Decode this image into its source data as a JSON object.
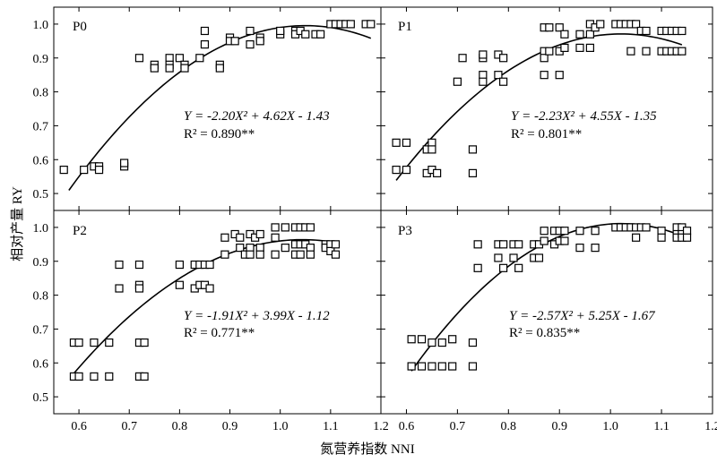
{
  "chart_data": {
    "type": "scatter",
    "ylabel": "相对产量 RY",
    "xlabel": "氮营养指数 NNI",
    "xlim": [
      0.55,
      1.2
    ],
    "ylim": [
      0.45,
      1.05
    ],
    "xticks": [
      "0.6",
      "0.7",
      "0.8",
      "0.9",
      "1.0",
      "1.1",
      "1.2"
    ],
    "yticks": [
      "0.5",
      "0.6",
      "0.7",
      "0.8",
      "0.9",
      "1.0"
    ],
    "panels": [
      {
        "label": "P0",
        "equation": "Y = -2.20X² + 4.62X - 1.43",
        "r2": "R² = 0.890**",
        "coef": [
          -2.2,
          4.62,
          -1.43
        ],
        "fit_range": [
          0.58,
          1.18
        ],
        "points": [
          [
            0.57,
            0.57
          ],
          [
            0.61,
            0.57
          ],
          [
            0.63,
            0.58
          ],
          [
            0.64,
            0.58
          ],
          [
            0.64,
            0.57
          ],
          [
            0.69,
            0.58
          ],
          [
            0.69,
            0.59
          ],
          [
            0.72,
            0.9
          ],
          [
            0.75,
            0.88
          ],
          [
            0.75,
            0.87
          ],
          [
            0.78,
            0.9
          ],
          [
            0.78,
            0.88
          ],
          [
            0.78,
            0.87
          ],
          [
            0.8,
            0.9
          ],
          [
            0.81,
            0.88
          ],
          [
            0.81,
            0.87
          ],
          [
            0.84,
            0.9
          ],
          [
            0.85,
            0.94
          ],
          [
            0.85,
            0.98
          ],
          [
            0.88,
            0.88
          ],
          [
            0.88,
            0.87
          ],
          [
            0.9,
            0.96
          ],
          [
            0.9,
            0.95
          ],
          [
            0.91,
            0.95
          ],
          [
            0.94,
            0.98
          ],
          [
            0.94,
            0.94
          ],
          [
            0.96,
            0.96
          ],
          [
            0.96,
            0.95
          ],
          [
            1.0,
            0.97
          ],
          [
            1.0,
            0.98
          ],
          [
            1.03,
            0.98
          ],
          [
            1.03,
            0.97
          ],
          [
            1.04,
            0.98
          ],
          [
            1.05,
            0.97
          ],
          [
            1.07,
            0.97
          ],
          [
            1.08,
            0.97
          ],
          [
            1.1,
            1.0
          ],
          [
            1.11,
            1.0
          ],
          [
            1.12,
            1.0
          ],
          [
            1.13,
            1.0
          ],
          [
            1.14,
            1.0
          ],
          [
            1.17,
            1.0
          ],
          [
            1.18,
            1.0
          ]
        ]
      },
      {
        "label": "P1",
        "equation": "Y = -2.23X² + 4.55X - 1.35",
        "r2": "R² = 0.801**",
        "coef": [
          -2.23,
          4.55,
          -1.35
        ],
        "fit_range": [
          0.58,
          1.14
        ],
        "points": [
          [
            0.58,
            0.65
          ],
          [
            0.6,
            0.65
          ],
          [
            0.58,
            0.57
          ],
          [
            0.6,
            0.57
          ],
          [
            0.64,
            0.63
          ],
          [
            0.65,
            0.65
          ],
          [
            0.65,
            0.63
          ],
          [
            0.64,
            0.56
          ],
          [
            0.65,
            0.57
          ],
          [
            0.66,
            0.56
          ],
          [
            0.7,
            0.83
          ],
          [
            0.71,
            0.9
          ],
          [
            0.73,
            0.63
          ],
          [
            0.73,
            0.56
          ],
          [
            0.75,
            0.9
          ],
          [
            0.75,
            0.91
          ],
          [
            0.75,
            0.85
          ],
          [
            0.75,
            0.83
          ],
          [
            0.78,
            0.91
          ],
          [
            0.78,
            0.85
          ],
          [
            0.79,
            0.9
          ],
          [
            0.79,
            0.83
          ],
          [
            0.87,
            0.99
          ],
          [
            0.87,
            0.92
          ],
          [
            0.87,
            0.9
          ],
          [
            0.87,
            0.85
          ],
          [
            0.88,
            0.92
          ],
          [
            0.88,
            0.99
          ],
          [
            0.9,
            0.99
          ],
          [
            0.9,
            0.92
          ],
          [
            0.9,
            0.85
          ],
          [
            0.91,
            0.97
          ],
          [
            0.91,
            0.93
          ],
          [
            0.94,
            0.97
          ],
          [
            0.94,
            0.93
          ],
          [
            0.96,
            1.0
          ],
          [
            0.96,
            0.97
          ],
          [
            0.96,
            0.93
          ],
          [
            0.97,
            0.99
          ],
          [
            0.98,
            1.0
          ],
          [
            1.01,
            1.0
          ],
          [
            1.02,
            1.0
          ],
          [
            1.03,
            1.0
          ],
          [
            1.04,
            1.0
          ],
          [
            1.04,
            0.92
          ],
          [
            1.05,
            1.0
          ],
          [
            1.06,
            0.98
          ],
          [
            1.07,
            0.98
          ],
          [
            1.07,
            0.92
          ],
          [
            1.1,
            0.98
          ],
          [
            1.1,
            0.92
          ],
          [
            1.11,
            0.98
          ],
          [
            1.11,
            0.92
          ],
          [
            1.12,
            0.98
          ],
          [
            1.12,
            0.92
          ],
          [
            1.13,
            0.98
          ],
          [
            1.13,
            0.92
          ],
          [
            1.14,
            0.98
          ],
          [
            1.14,
            0.92
          ]
        ]
      },
      {
        "label": "P2",
        "equation": "Y = -1.91X² + 3.99X - 1.12",
        "r2": "R² = 0.771**",
        "coef": [
          -1.91,
          3.99,
          -1.12
        ],
        "fit_range": [
          0.59,
          1.11
        ],
        "points": [
          [
            0.59,
            0.66
          ],
          [
            0.6,
            0.66
          ],
          [
            0.59,
            0.56
          ],
          [
            0.6,
            0.56
          ],
          [
            0.63,
            0.66
          ],
          [
            0.63,
            0.56
          ],
          [
            0.66,
            0.66
          ],
          [
            0.66,
            0.56
          ],
          [
            0.68,
            0.89
          ],
          [
            0.68,
            0.82
          ],
          [
            0.72,
            0.89
          ],
          [
            0.72,
            0.83
          ],
          [
            0.72,
            0.82
          ],
          [
            0.72,
            0.66
          ],
          [
            0.72,
            0.56
          ],
          [
            0.73,
            0.66
          ],
          [
            0.73,
            0.56
          ],
          [
            0.8,
            0.89
          ],
          [
            0.8,
            0.83
          ],
          [
            0.83,
            0.89
          ],
          [
            0.83,
            0.82
          ],
          [
            0.84,
            0.89
          ],
          [
            0.84,
            0.83
          ],
          [
            0.85,
            0.89
          ],
          [
            0.85,
            0.83
          ],
          [
            0.86,
            0.89
          ],
          [
            0.86,
            0.82
          ],
          [
            0.89,
            0.97
          ],
          [
            0.89,
            0.92
          ],
          [
            0.91,
            0.98
          ],
          [
            0.92,
            0.97
          ],
          [
            0.92,
            0.94
          ],
          [
            0.93,
            0.92
          ],
          [
            0.94,
            0.98
          ],
          [
            0.94,
            0.94
          ],
          [
            0.94,
            0.92
          ],
          [
            0.95,
            0.97
          ],
          [
            0.96,
            0.98
          ],
          [
            0.96,
            0.94
          ],
          [
            0.96,
            0.92
          ],
          [
            0.99,
            1.0
          ],
          [
            0.99,
            0.97
          ],
          [
            0.99,
            0.92
          ],
          [
            1.01,
            1.0
          ],
          [
            1.01,
            0.94
          ],
          [
            1.03,
            1.0
          ],
          [
            1.03,
            0.95
          ],
          [
            1.03,
            0.92
          ],
          [
            1.04,
            1.0
          ],
          [
            1.04,
            0.95
          ],
          [
            1.04,
            0.92
          ],
          [
            1.05,
            1.0
          ],
          [
            1.05,
            0.95
          ],
          [
            1.06,
            1.0
          ],
          [
            1.06,
            0.94
          ],
          [
            1.06,
            0.92
          ],
          [
            1.09,
            0.95
          ],
          [
            1.09,
            0.94
          ],
          [
            1.1,
            0.95
          ],
          [
            1.1,
            0.93
          ],
          [
            1.11,
            0.95
          ],
          [
            1.11,
            0.92
          ]
        ]
      },
      {
        "label": "P3",
        "equation": "Y = -2.57X² + 5.25X - 1.67",
        "r2": "R² = 0.835**",
        "coef": [
          -2.57,
          5.25,
          -1.67
        ],
        "fit_range": [
          0.61,
          1.15
        ],
        "points": [
          [
            0.61,
            0.67
          ],
          [
            0.63,
            0.67
          ],
          [
            0.61,
            0.59
          ],
          [
            0.63,
            0.59
          ],
          [
            0.65,
            0.66
          ],
          [
            0.65,
            0.59
          ],
          [
            0.67,
            0.66
          ],
          [
            0.67,
            0.59
          ],
          [
            0.69,
            0.67
          ],
          [
            0.69,
            0.59
          ],
          [
            0.73,
            0.66
          ],
          [
            0.73,
            0.59
          ],
          [
            0.74,
            0.95
          ],
          [
            0.74,
            0.88
          ],
          [
            0.78,
            0.95
          ],
          [
            0.78,
            0.91
          ],
          [
            0.79,
            0.95
          ],
          [
            0.79,
            0.88
          ],
          [
            0.81,
            0.95
          ],
          [
            0.81,
            0.91
          ],
          [
            0.82,
            0.95
          ],
          [
            0.82,
            0.88
          ],
          [
            0.85,
            0.95
          ],
          [
            0.85,
            0.91
          ],
          [
            0.86,
            0.95
          ],
          [
            0.86,
            0.91
          ],
          [
            0.87,
            0.99
          ],
          [
            0.87,
            0.96
          ],
          [
            0.89,
            0.99
          ],
          [
            0.89,
            0.95
          ],
          [
            0.9,
            0.99
          ],
          [
            0.9,
            0.96
          ],
          [
            0.91,
            0.99
          ],
          [
            0.91,
            0.96
          ],
          [
            0.94,
            0.99
          ],
          [
            0.94,
            0.94
          ],
          [
            0.97,
            0.99
          ],
          [
            0.97,
            0.94
          ],
          [
            1.01,
            1.0
          ],
          [
            1.02,
            1.0
          ],
          [
            1.03,
            1.0
          ],
          [
            1.04,
            1.0
          ],
          [
            1.05,
            0.97
          ],
          [
            1.05,
            1.0
          ],
          [
            1.06,
            1.0
          ],
          [
            1.07,
            1.0
          ],
          [
            1.1,
            0.99
          ],
          [
            1.1,
            0.97
          ],
          [
            1.13,
            1.0
          ],
          [
            1.13,
            0.98
          ],
          [
            1.13,
            0.97
          ],
          [
            1.14,
            1.0
          ],
          [
            1.14,
            0.98
          ],
          [
            1.14,
            0.97
          ],
          [
            1.15,
            0.99
          ],
          [
            1.15,
            0.97
          ]
        ]
      }
    ]
  }
}
